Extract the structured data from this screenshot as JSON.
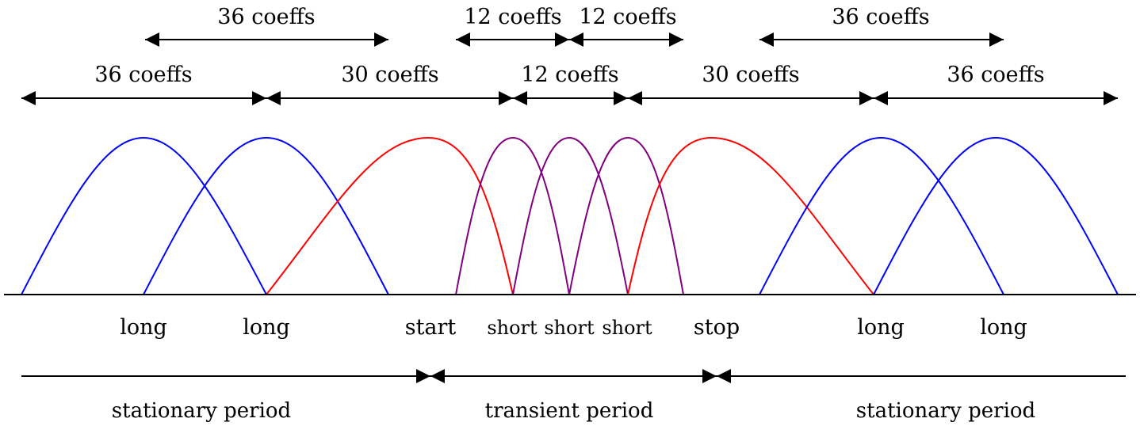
{
  "colors": {
    "long": "#0000ff",
    "transition": "#ff0000",
    "short": "#800080",
    "axis": "#000000"
  },
  "coeff_labels": {
    "top": [
      "36 coeffs",
      "12 coeffs",
      "12 coeffs",
      "36 coeffs"
    ],
    "middle": [
      "36 coeffs",
      "30 coeffs",
      "12 coeffs",
      "30 coeffs",
      "36 coeffs"
    ]
  },
  "window_labels": [
    "long",
    "long",
    "start",
    "short",
    "short",
    "short",
    "stop",
    "long",
    "long"
  ],
  "period_labels": [
    "stationary period",
    "transient period",
    "stationary period"
  ]
}
